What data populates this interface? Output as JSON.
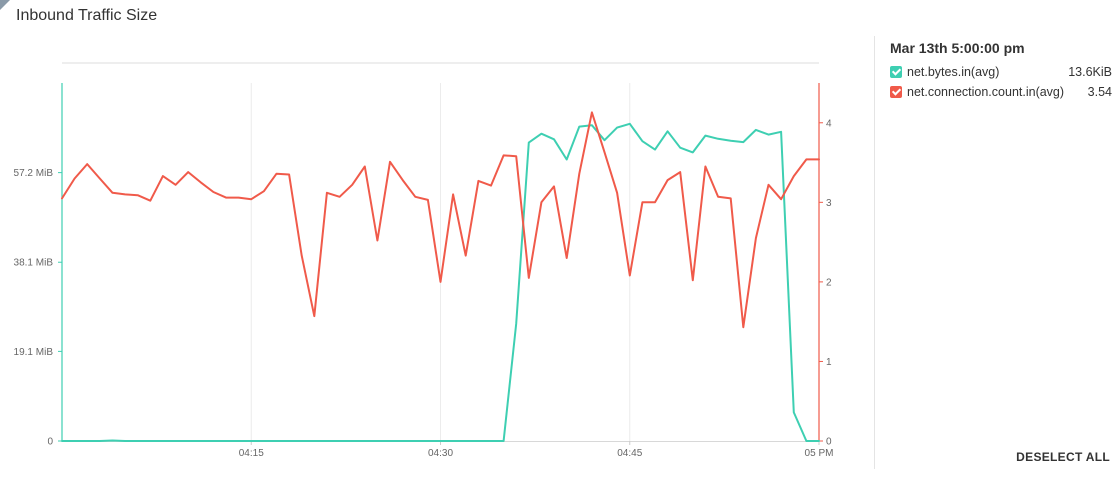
{
  "title": "Inbound Traffic Size",
  "legend": {
    "timestamp": "Mar 13th 5:00:00 pm",
    "deselect_all": "DESELECT ALL",
    "items": [
      {
        "name": "net.bytes.in(avg)",
        "value": "13.6KiB",
        "color": "#3ecfb2"
      },
      {
        "name": "net.connection.count.in(avg)",
        "value": "3.54",
        "color": "#f05a4a"
      }
    ]
  },
  "chart_data": {
    "type": "line",
    "x_axis": {
      "range": [
        "04:00",
        "05:00"
      ],
      "ticks": [
        {
          "label": "04:15",
          "value": 15
        },
        {
          "label": "04:30",
          "value": 30
        },
        {
          "label": "04:45",
          "value": 45
        },
        {
          "label": "05 PM",
          "value": 60
        }
      ]
    },
    "y_left": {
      "unit": "MiB",
      "range": [
        0,
        76.3
      ],
      "ticks": [
        {
          "label": "0",
          "value": 0
        },
        {
          "label": "19.1 MiB",
          "value": 19.1
        },
        {
          "label": "38.1 MiB",
          "value": 38.1
        },
        {
          "label": "57.2 MiB",
          "value": 57.2
        }
      ]
    },
    "y_right": {
      "range": [
        0,
        4.5
      ],
      "ticks": [
        {
          "label": "0",
          "value": 0
        },
        {
          "label": "1",
          "value": 1
        },
        {
          "label": "2",
          "value": 2
        },
        {
          "label": "3",
          "value": 3
        },
        {
          "label": "4",
          "value": 4
        }
      ]
    },
    "grid": true,
    "series": [
      {
        "name": "net.bytes.in(avg)",
        "axis": "left",
        "color": "#3ecfb2",
        "x": [
          0,
          1,
          2,
          3,
          4,
          5,
          6,
          7,
          8,
          9,
          10,
          11,
          12,
          13,
          14,
          15,
          16,
          17,
          18,
          19,
          20,
          21,
          22,
          23,
          24,
          25,
          26,
          27,
          28,
          29,
          30,
          31,
          32,
          33,
          34,
          35,
          36,
          37,
          38,
          39,
          40,
          41,
          42,
          43,
          44,
          45,
          46,
          47,
          48,
          49,
          50,
          51,
          52,
          53,
          54,
          55,
          56,
          57,
          58,
          59,
          60
        ],
        "y": [
          0,
          0,
          0,
          0,
          0.1,
          0,
          0,
          0,
          0,
          0,
          0,
          0,
          0,
          0,
          0,
          0,
          0,
          0,
          0,
          0,
          0,
          0,
          0,
          0,
          0,
          0,
          0,
          0,
          0,
          0,
          0,
          0,
          0,
          0,
          0,
          0,
          25,
          63.6,
          65.5,
          64.3,
          60,
          67,
          67.3,
          64.1,
          66.8,
          67.6,
          63.9,
          62.1,
          66,
          62.5,
          61.5,
          65.1,
          64.4,
          64,
          63.7,
          66.3,
          65.3,
          65.9,
          6.1,
          0,
          0
        ]
      },
      {
        "name": "net.connection.count.in(avg)",
        "axis": "right",
        "color": "#f05a4a",
        "x": [
          0,
          1,
          2,
          3,
          4,
          5,
          6,
          7,
          8,
          9,
          10,
          11,
          12,
          13,
          14,
          15,
          16,
          17,
          18,
          19,
          20,
          21,
          22,
          23,
          24,
          25,
          26,
          27,
          28,
          29,
          30,
          31,
          32,
          33,
          34,
          35,
          36,
          37,
          38,
          39,
          40,
          41,
          42,
          43,
          44,
          45,
          46,
          47,
          48,
          49,
          50,
          51,
          52,
          53,
          54,
          55,
          56,
          57,
          58,
          59,
          60
        ],
        "y": [
          3.05,
          3.3,
          3.48,
          3.3,
          3.12,
          3.1,
          3.09,
          3.02,
          3.33,
          3.22,
          3.38,
          3.25,
          3.13,
          3.06,
          3.06,
          3.04,
          3.14,
          3.36,
          3.35,
          2.33,
          1.57,
          3.12,
          3.07,
          3.22,
          3.45,
          2.52,
          3.51,
          3.28,
          3.07,
          3.03,
          2.0,
          3.1,
          2.33,
          3.27,
          3.21,
          3.59,
          3.58,
          2.05,
          3.0,
          3.2,
          2.3,
          3.36,
          4.13,
          3.63,
          3.12,
          2.08,
          3.0,
          3.0,
          3.28,
          3.38,
          2.02,
          3.45,
          3.07,
          3.05,
          1.43,
          2.55,
          3.22,
          3.04,
          3.33,
          3.54,
          3.54
        ]
      }
    ]
  }
}
